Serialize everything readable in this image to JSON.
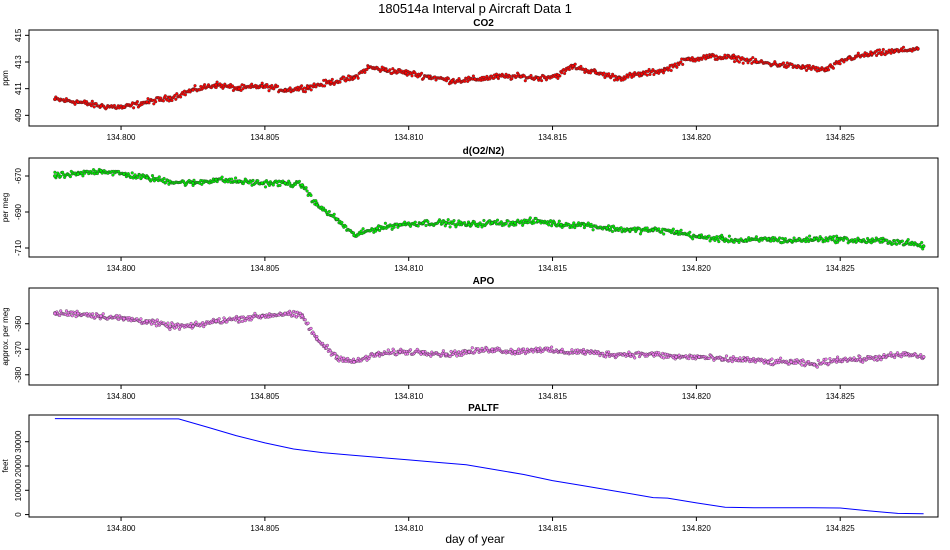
{
  "figure": {
    "title": "180514a   Interval p Aircraft Data 1",
    "xlabel": "day of year"
  },
  "chart_data": [
    {
      "type": "scatter",
      "title": "CO2",
      "ylabel": "ppm",
      "color": "#ff0000",
      "xlim": [
        134.7968,
        134.8284
      ],
      "ylim": [
        408.2,
        415.4
      ],
      "x_ticks": [
        "134.800",
        "134.805",
        "134.810",
        "134.815",
        "134.820",
        "134.825"
      ],
      "y_ticks": [
        "409",
        "411",
        "413",
        "415"
      ],
      "series": [
        {
          "name": "CO2",
          "x": [
            134.7977,
            134.7985,
            134.7993,
            134.8001,
            134.8009,
            134.8017,
            134.8025,
            134.8033,
            134.8041,
            134.8049,
            134.8057,
            134.8065,
            134.8073,
            134.8081,
            134.8086,
            134.8092,
            134.8099,
            134.8107,
            134.8115,
            134.8123,
            134.8131,
            134.8139,
            134.8145,
            134.8152,
            134.8157,
            134.8165,
            134.8173,
            134.8181,
            134.8189,
            134.8197,
            134.8205,
            134.8213,
            134.8221,
            134.8229,
            134.8237,
            134.8245,
            134.8253,
            134.8261,
            134.8269,
            134.8277
          ],
          "y": [
            410.2,
            410.0,
            409.7,
            409.6,
            410.0,
            410.3,
            410.9,
            411.3,
            411.0,
            411.2,
            410.9,
            411.1,
            411.5,
            411.8,
            412.6,
            412.4,
            412.2,
            411.9,
            411.6,
            411.7,
            411.9,
            411.9,
            411.8,
            412.0,
            412.7,
            412.2,
            411.8,
            412.1,
            412.4,
            413.2,
            413.4,
            413.3,
            413.0,
            412.8,
            412.6,
            412.4,
            413.3,
            413.6,
            413.8,
            414.0
          ]
        }
      ]
    },
    {
      "type": "scatter",
      "title": "d(O2/N2)",
      "ylabel": "per meg",
      "color": "#00ee00",
      "xlim": [
        134.7968,
        134.8284
      ],
      "ylim": [
        -715,
        -660
      ],
      "x_ticks": [
        "134.800",
        "134.805",
        "134.810",
        "134.815",
        "134.820",
        "134.825"
      ],
      "y_ticks": [
        "-670",
        "-690",
        "-710"
      ],
      "series": [
        {
          "name": "d(O2/N2)",
          "x": [
            134.7977,
            134.7985,
            134.7993,
            134.8001,
            134.8009,
            134.8017,
            134.8025,
            134.8033,
            134.8041,
            134.8049,
            134.8057,
            134.8063,
            134.8068,
            134.8075,
            134.8081,
            134.8089,
            134.8097,
            134.8105,
            134.8113,
            134.8121,
            134.8129,
            134.8137,
            134.8145,
            134.8153,
            134.8161,
            134.8169,
            134.8177,
            134.8185,
            134.8193,
            134.8201,
            134.8209,
            134.8217,
            134.8225,
            134.8233,
            134.8241,
            134.8249,
            134.8257,
            134.8265,
            134.8273,
            134.8279
          ],
          "y": [
            -670,
            -669,
            -667,
            -669,
            -671,
            -673,
            -674,
            -672,
            -673,
            -674,
            -674,
            -675,
            -686,
            -694,
            -703,
            -699,
            -697,
            -696,
            -696,
            -697,
            -696,
            -696,
            -695,
            -697,
            -697,
            -699,
            -700,
            -700,
            -701,
            -704,
            -705,
            -706,
            -705,
            -706,
            -705,
            -705,
            -706,
            -706,
            -707,
            -709
          ]
        }
      ]
    },
    {
      "type": "scatter",
      "title": "APO",
      "ylabel": "approx. per meg",
      "color": "#ee77ee",
      "xlim": [
        134.7968,
        134.8284
      ],
      "ylim": [
        -384,
        -346
      ],
      "x_ticks": [
        "134.800",
        "134.805",
        "134.810",
        "134.815",
        "134.820",
        "134.825"
      ],
      "y_ticks": [
        "-360",
        "-370",
        "-380"
      ],
      "series": [
        {
          "name": "APO",
          "x": [
            134.7977,
            134.7985,
            134.7993,
            134.8001,
            134.8009,
            134.8017,
            134.8025,
            134.8033,
            134.8041,
            134.8049,
            134.8057,
            134.8063,
            134.8068,
            134.8075,
            134.8081,
            134.8089,
            134.8097,
            134.8105,
            134.8113,
            134.8121,
            134.8129,
            134.8137,
            134.8145,
            134.8153,
            134.8161,
            134.8169,
            134.8177,
            134.8185,
            134.8193,
            134.8201,
            134.8209,
            134.8217,
            134.8225,
            134.8233,
            134.8241,
            134.8249,
            134.8257,
            134.8265,
            134.8273,
            134.8279
          ],
          "y": [
            -356,
            -356,
            -357,
            -358,
            -359,
            -361,
            -361,
            -359,
            -358,
            -357,
            -356,
            -357,
            -366,
            -373,
            -375,
            -372,
            -371,
            -371,
            -372,
            -371,
            -370,
            -371,
            -370,
            -371,
            -371,
            -372,
            -372,
            -372,
            -373,
            -373,
            -374,
            -374,
            -375,
            -375,
            -376,
            -374,
            -374,
            -373,
            -372,
            -373
          ]
        }
      ]
    },
    {
      "type": "line",
      "title": "PALTF",
      "ylabel": "feet",
      "color": "#0000ff",
      "xlim": [
        134.7968,
        134.8284
      ],
      "ylim": [
        -1000,
        41000
      ],
      "x_ticks": [
        "134.800",
        "134.805",
        "134.810",
        "134.815",
        "134.820",
        "134.825"
      ],
      "y_ticks": [
        "0",
        "10000",
        "20000",
        "30000"
      ],
      "series": [
        {
          "name": "PALTF",
          "x": [
            134.7977,
            134.8,
            134.801,
            134.802,
            134.803,
            134.804,
            134.805,
            134.806,
            134.807,
            134.808,
            134.809,
            134.81,
            134.811,
            134.812,
            134.813,
            134.814,
            134.815,
            134.816,
            134.817,
            134.818,
            134.8185,
            134.819,
            134.82,
            134.821,
            134.822,
            134.823,
            134.824,
            134.825,
            134.826,
            134.827,
            134.8279
          ],
          "y": [
            39500,
            39400,
            39400,
            39400,
            36000,
            32500,
            29500,
            27000,
            25500,
            24500,
            23500,
            22500,
            21500,
            20500,
            18500,
            16500,
            14000,
            12000,
            10000,
            8000,
            7000,
            6800,
            4800,
            3000,
            2800,
            2800,
            2800,
            2700,
            1500,
            500,
            300
          ]
        }
      ]
    }
  ]
}
